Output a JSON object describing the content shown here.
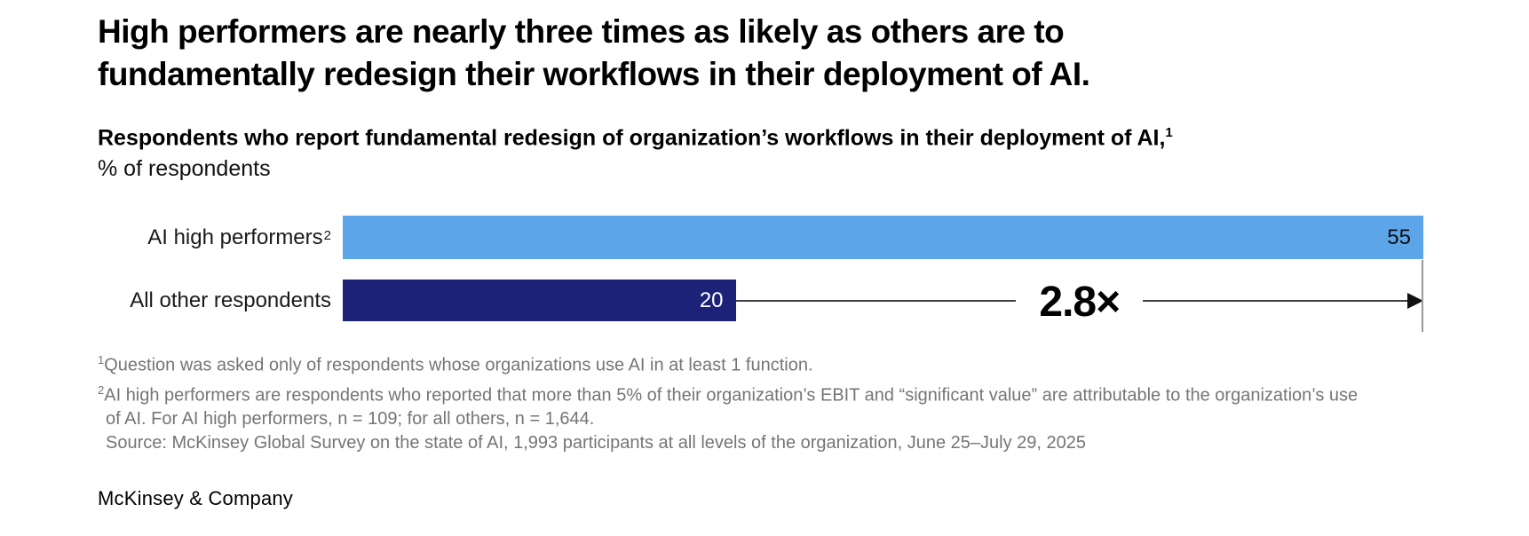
{
  "title": "High performers are nearly three times as likely as others are to fundamentally redesign their workflows in their deployment of AI.",
  "subtitle": {
    "text": "Respondents who report fundamental redesign of organization’s workflows in their deployment of AI,",
    "sup": "1",
    "unit": "% of respondents"
  },
  "chart_data": {
    "type": "bar",
    "orientation": "horizontal",
    "title": "Respondents who report fundamental redesign of organization’s workflows in their deployment of AI",
    "ylabel": "% of respondents",
    "xlabel": "",
    "xlim": [
      0,
      55
    ],
    "grid": false,
    "categories": [
      "AI high performers",
      "All other respondents"
    ],
    "category_sups": [
      "2",
      ""
    ],
    "values": [
      55,
      20
    ],
    "series_colors": [
      "#5CA5E8",
      "#1B2277"
    ],
    "value_label_colors": [
      "#0e0e0e",
      "#ffffff"
    ],
    "annotation": {
      "label": "2.8×"
    }
  },
  "footnotes": {
    "lines": [
      {
        "sup": "1",
        "text": "Question was asked only of respondents whose organizations use AI in at least 1 function.",
        "indent": false
      },
      {
        "sup": "2",
        "text": "AI high performers are respondents who reported that more than 5% of their organization’s EBIT and “significant value” are attributable to the organization’s use",
        "indent": false
      },
      {
        "sup": "",
        "text": "of AI. For AI high performers, n = 109; for all others, n = 1,644.",
        "indent": true
      },
      {
        "sup": "",
        "text": "Source: McKinsey Global Survey on the state of AI, 1,993 participants at all levels of the organization, June 25–July 29, 2025",
        "indent": true
      }
    ]
  },
  "footer": {
    "brand": "McKinsey & Company"
  },
  "colors": {
    "bar_high": "#5CA5E8",
    "bar_other": "#1B2277",
    "footnote_gray": "#757575",
    "arrow_line": "#3f3f3f",
    "end_line": "#999999"
  }
}
